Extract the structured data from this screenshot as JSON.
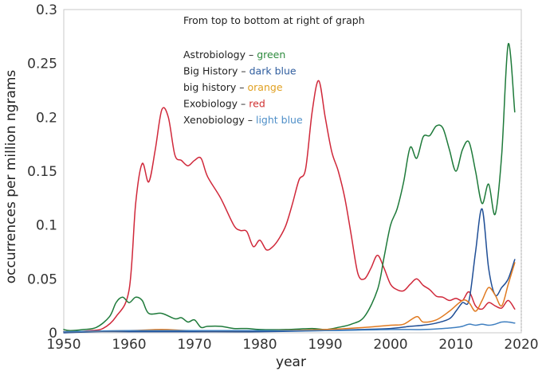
{
  "chart_data": {
    "type": "line",
    "title": "",
    "xlabel": "year",
    "ylabel": "occurrences per million ngrams",
    "xlim": [
      1950,
      2020
    ],
    "ylim": [
      0,
      0.3
    ],
    "xticks": [
      1950,
      1960,
      1970,
      1980,
      1990,
      2000,
      2010,
      2020
    ],
    "yticks": [
      {
        "value": 0,
        "label": "0"
      },
      {
        "value": 0.05,
        "label": "0.05"
      },
      {
        "value": 0.1,
        "label": "0.1"
      },
      {
        "value": 0.15,
        "label": "0.15"
      },
      {
        "value": 0.2,
        "label": "0.2"
      },
      {
        "value": 0.25,
        "label": "0.25"
      },
      {
        "value": 0.3,
        "label": "0.3"
      }
    ],
    "grid": false,
    "legend": {
      "heading": "From top to bottom at right of graph",
      "entries": [
        {
          "term": "Astrobiology",
          "sep": " – ",
          "color_name": "green",
          "color": "#2e8b3e"
        },
        {
          "term": "Big History",
          "sep": " – ",
          "color_name": "dark blue",
          "color": "#2f5d9e"
        },
        {
          "term": "big history",
          "sep": " – ",
          "color_name": "orange",
          "color": "#e0a020"
        },
        {
          "term": "Exobiology",
          "sep": " – ",
          "color_name": "red",
          "color": "#d03030"
        },
        {
          "term": "Xenobiology",
          "sep": " – ",
          "color_name": "light blue",
          "color": "#4f8fc8"
        }
      ]
    },
    "series": [
      {
        "key": "exobiology",
        "color": "#d0283a",
        "points": [
          [
            1950,
            0.001
          ],
          [
            1952,
            0.001
          ],
          [
            1954,
            0.002
          ],
          [
            1956,
            0.004
          ],
          [
            1958,
            0.015
          ],
          [
            1960,
            0.04
          ],
          [
            1961,
            0.12
          ],
          [
            1962,
            0.157
          ],
          [
            1963,
            0.14
          ],
          [
            1964,
            0.17
          ],
          [
            1965,
            0.207
          ],
          [
            1966,
            0.2
          ],
          [
            1967,
            0.165
          ],
          [
            1968,
            0.16
          ],
          [
            1969,
            0.155
          ],
          [
            1970,
            0.16
          ],
          [
            1971,
            0.162
          ],
          [
            1972,
            0.145
          ],
          [
            1974,
            0.125
          ],
          [
            1976,
            0.1
          ],
          [
            1977,
            0.095
          ],
          [
            1978,
            0.094
          ],
          [
            1979,
            0.08
          ],
          [
            1980,
            0.086
          ],
          [
            1981,
            0.077
          ],
          [
            1982,
            0.08
          ],
          [
            1983,
            0.088
          ],
          [
            1984,
            0.1
          ],
          [
            1985,
            0.12
          ],
          [
            1986,
            0.142
          ],
          [
            1987,
            0.152
          ],
          [
            1988,
            0.205
          ],
          [
            1989,
            0.234
          ],
          [
            1990,
            0.2
          ],
          [
            1991,
            0.168
          ],
          [
            1992,
            0.15
          ],
          [
            1993,
            0.125
          ],
          [
            1994,
            0.09
          ],
          [
            1995,
            0.055
          ],
          [
            1996,
            0.05
          ],
          [
            1997,
            0.06
          ],
          [
            1998,
            0.072
          ],
          [
            1999,
            0.06
          ],
          [
            2000,
            0.045
          ],
          [
            2001,
            0.04
          ],
          [
            2002,
            0.039
          ],
          [
            2003,
            0.045
          ],
          [
            2004,
            0.05
          ],
          [
            2005,
            0.044
          ],
          [
            2006,
            0.04
          ],
          [
            2007,
            0.034
          ],
          [
            2008,
            0.033
          ],
          [
            2009,
            0.03
          ],
          [
            2010,
            0.032
          ],
          [
            2011,
            0.03
          ],
          [
            2012,
            0.038
          ],
          [
            2013,
            0.025
          ],
          [
            2014,
            0.022
          ],
          [
            2015,
            0.028
          ],
          [
            2016,
            0.025
          ],
          [
            2017,
            0.023
          ],
          [
            2018,
            0.03
          ],
          [
            2019,
            0.022
          ]
        ]
      },
      {
        "key": "astrobiology",
        "color": "#1e7a3a",
        "points": [
          [
            1950,
            0.003
          ],
          [
            1951,
            0.002
          ],
          [
            1953,
            0.003
          ],
          [
            1955,
            0.005
          ],
          [
            1957,
            0.015
          ],
          [
            1958,
            0.028
          ],
          [
            1959,
            0.033
          ],
          [
            1960,
            0.028
          ],
          [
            1961,
            0.033
          ],
          [
            1962,
            0.03
          ],
          [
            1963,
            0.018
          ],
          [
            1965,
            0.018
          ],
          [
            1967,
            0.013
          ],
          [
            1968,
            0.014
          ],
          [
            1969,
            0.01
          ],
          [
            1970,
            0.012
          ],
          [
            1971,
            0.005
          ],
          [
            1972,
            0.006
          ],
          [
            1974,
            0.006
          ],
          [
            1976,
            0.004
          ],
          [
            1978,
            0.004
          ],
          [
            1980,
            0.003
          ],
          [
            1984,
            0.003
          ],
          [
            1988,
            0.004
          ],
          [
            1990,
            0.003
          ],
          [
            1992,
            0.005
          ],
          [
            1994,
            0.008
          ],
          [
            1996,
            0.015
          ],
          [
            1998,
            0.04
          ],
          [
            1999,
            0.07
          ],
          [
            2000,
            0.1
          ],
          [
            2001,
            0.115
          ],
          [
            2002,
            0.14
          ],
          [
            2003,
            0.172
          ],
          [
            2004,
            0.162
          ],
          [
            2005,
            0.182
          ],
          [
            2006,
            0.183
          ],
          [
            2007,
            0.192
          ],
          [
            2008,
            0.19
          ],
          [
            2009,
            0.17
          ],
          [
            2010,
            0.15
          ],
          [
            2011,
            0.17
          ],
          [
            2012,
            0.177
          ],
          [
            2013,
            0.15
          ],
          [
            2014,
            0.12
          ],
          [
            2015,
            0.138
          ],
          [
            2016,
            0.11
          ],
          [
            2017,
            0.165
          ],
          [
            2018,
            0.268
          ],
          [
            2019,
            0.205
          ]
        ]
      },
      {
        "key": "big_history_dark_blue",
        "color": "#1f4e96",
        "points": [
          [
            1950,
            0
          ],
          [
            1955,
            0.001
          ],
          [
            1960,
            0.001
          ],
          [
            1970,
            0.001
          ],
          [
            1980,
            0.001
          ],
          [
            1990,
            0.002
          ],
          [
            1995,
            0.003
          ],
          [
            2000,
            0.004
          ],
          [
            2003,
            0.006
          ],
          [
            2005,
            0.007
          ],
          [
            2007,
            0.009
          ],
          [
            2009,
            0.013
          ],
          [
            2010,
            0.02
          ],
          [
            2011,
            0.028
          ],
          [
            2012,
            0.03
          ],
          [
            2013,
            0.075
          ],
          [
            2014,
            0.115
          ],
          [
            2015,
            0.06
          ],
          [
            2016,
            0.035
          ],
          [
            2017,
            0.042
          ],
          [
            2018,
            0.05
          ],
          [
            2019,
            0.068
          ]
        ]
      },
      {
        "key": "big_history_orange",
        "color": "#e07a20",
        "points": [
          [
            1950,
            0.001
          ],
          [
            1960,
            0.002
          ],
          [
            1965,
            0.003
          ],
          [
            1970,
            0.002
          ],
          [
            1980,
            0.002
          ],
          [
            1990,
            0.003
          ],
          [
            1996,
            0.005
          ],
          [
            2000,
            0.007
          ],
          [
            2002,
            0.008
          ],
          [
            2004,
            0.015
          ],
          [
            2005,
            0.01
          ],
          [
            2007,
            0.012
          ],
          [
            2009,
            0.02
          ],
          [
            2011,
            0.03
          ],
          [
            2012,
            0.028
          ],
          [
            2013,
            0.02
          ],
          [
            2014,
            0.03
          ],
          [
            2015,
            0.042
          ],
          [
            2016,
            0.035
          ],
          [
            2017,
            0.025
          ],
          [
            2018,
            0.045
          ],
          [
            2019,
            0.065
          ]
        ]
      },
      {
        "key": "xenobiology",
        "color": "#3f7fc0",
        "points": [
          [
            1950,
            0.001
          ],
          [
            1960,
            0.002
          ],
          [
            1970,
            0.002
          ],
          [
            1980,
            0.002
          ],
          [
            1990,
            0.002
          ],
          [
            2000,
            0.003
          ],
          [
            2005,
            0.003
          ],
          [
            2008,
            0.004
          ],
          [
            2010,
            0.005
          ],
          [
            2011,
            0.006
          ],
          [
            2012,
            0.008
          ],
          [
            2013,
            0.007
          ],
          [
            2014,
            0.008
          ],
          [
            2015,
            0.007
          ],
          [
            2016,
            0.008
          ],
          [
            2017,
            0.01
          ],
          [
            2018,
            0.01
          ],
          [
            2019,
            0.009
          ]
        ]
      }
    ]
  }
}
